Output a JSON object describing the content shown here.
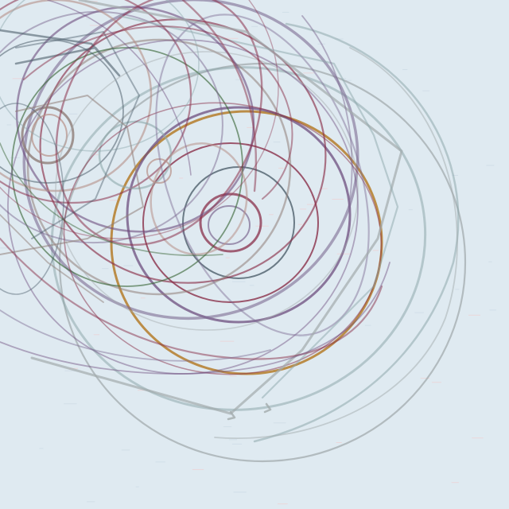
{
  "artwork": {
    "subject": "abstract-tangled-circular-line-drawing",
    "background_color": "#dfeaf1",
    "palette": {
      "maroon": "#8a2f4a",
      "plum": "#6e4d7e",
      "violet": "#7d6a92",
      "slate": "#4e5f6c",
      "teal_grey": "#8ea8ac",
      "grey": "#a3abad",
      "ochre": "#b57c2a",
      "olive_green": "#3f6a3e",
      "dusty_rose": "#b69088",
      "taupe": "#8f7d78"
    }
  }
}
